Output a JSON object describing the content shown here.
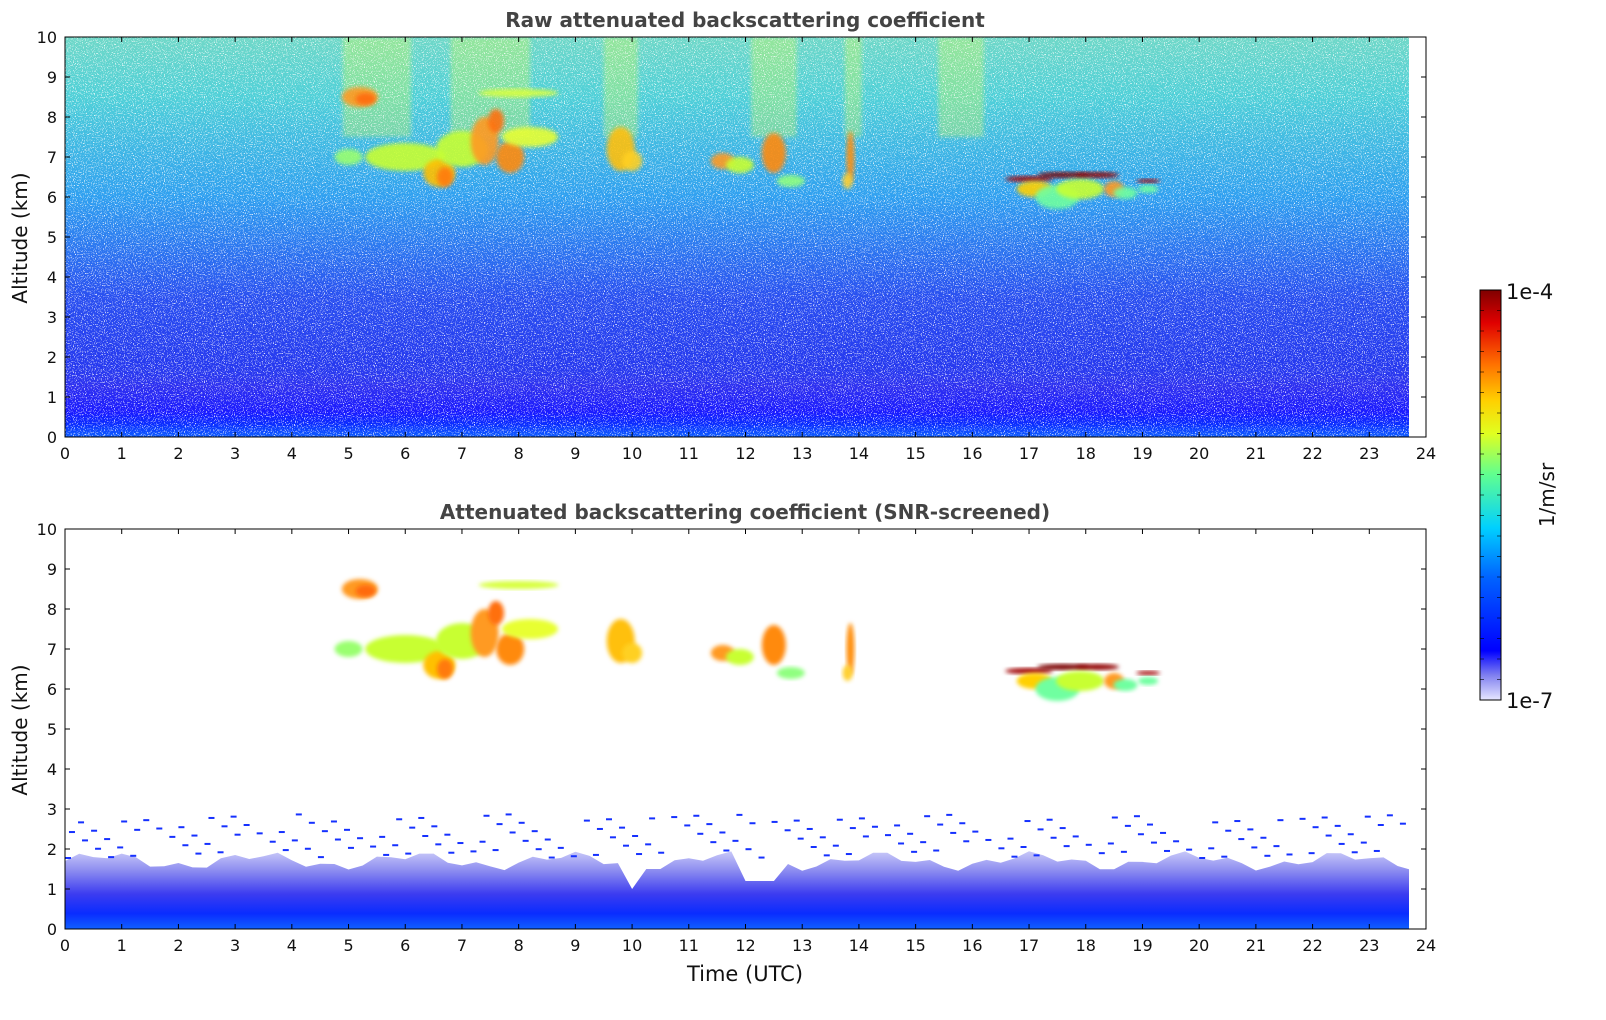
{
  "chart_data": [
    {
      "type": "heatmap",
      "title": "Raw attenuated backscattering coefficient",
      "xlabel": "",
      "ylabel": "Altitude (km)",
      "xlim": [
        0,
        24
      ],
      "ylim": [
        0,
        10
      ],
      "xticks": [
        "0",
        "1",
        "2",
        "3",
        "4",
        "5",
        "6",
        "7",
        "8",
        "9",
        "10",
        "11",
        "12",
        "13",
        "14",
        "15",
        "16",
        "17",
        "18",
        "19",
        "20",
        "21",
        "22",
        "23",
        "24"
      ],
      "yticks": [
        "0",
        "1",
        "2",
        "3",
        "4",
        "5",
        "6",
        "7",
        "8",
        "9",
        "10"
      ],
      "data_time_range": [
        0,
        23.7
      ],
      "features": [
        {
          "kind": "boundary-layer",
          "time": [
            0,
            23.7
          ],
          "altitude": [
            0,
            1.8
          ]
        },
        {
          "kind": "noisy-background",
          "time": [
            0,
            23.7
          ],
          "altitude": [
            1.8,
            10
          ]
        },
        {
          "kind": "cirrus",
          "time": [
            4.8,
            8.6
          ],
          "altitude": [
            6.3,
            8.7
          ]
        },
        {
          "kind": "cirrus",
          "time": [
            9.6,
            10.3
          ],
          "altitude": [
            6.6,
            7.9
          ]
        },
        {
          "kind": "cirrus",
          "time": [
            11.4,
            13.0
          ],
          "altitude": [
            6.3,
            7.8
          ]
        },
        {
          "kind": "cirrus",
          "time": [
            13.8,
            14.0
          ],
          "altitude": [
            6.2,
            7.7
          ]
        },
        {
          "kind": "cloud-layer",
          "time": [
            16.8,
            19.5
          ],
          "altitude": [
            5.7,
            6.7
          ]
        }
      ]
    },
    {
      "type": "heatmap",
      "title": "Attenuated backscattering coefficient (SNR-screened)",
      "xlabel": "Time (UTC)",
      "ylabel": "Altitude (km)",
      "xlim": [
        0,
        24
      ],
      "ylim": [
        0,
        10
      ],
      "xticks": [
        "0",
        "1",
        "2",
        "3",
        "4",
        "5",
        "6",
        "7",
        "8",
        "9",
        "10",
        "11",
        "12",
        "13",
        "14",
        "15",
        "16",
        "17",
        "18",
        "19",
        "20",
        "21",
        "22",
        "23",
        "24"
      ],
      "yticks": [
        "0",
        "1",
        "2",
        "3",
        "4",
        "5",
        "6",
        "7",
        "8",
        "9",
        "10"
      ],
      "data_time_range": [
        0,
        23.7
      ],
      "features": [
        {
          "kind": "boundary-layer",
          "time": [
            0,
            23.7
          ],
          "altitude": [
            0,
            1.9
          ]
        },
        {
          "kind": "cirrus",
          "time": [
            4.8,
            8.6
          ],
          "altitude": [
            6.3,
            8.7
          ]
        },
        {
          "kind": "cirrus",
          "time": [
            9.6,
            10.3
          ],
          "altitude": [
            6.6,
            7.9
          ]
        },
        {
          "kind": "cirrus",
          "time": [
            11.4,
            13.0
          ],
          "altitude": [
            6.3,
            7.8
          ]
        },
        {
          "kind": "cirrus",
          "time": [
            13.8,
            14.0
          ],
          "altitude": [
            6.2,
            7.7
          ]
        },
        {
          "kind": "cloud-layer",
          "time": [
            16.8,
            19.5
          ],
          "altitude": [
            5.7,
            6.7
          ]
        }
      ]
    }
  ],
  "colorbar": {
    "label": "1/m/sr",
    "max_label": "1e-4",
    "min_label": "1e-7",
    "range": [
      1e-07,
      0.0001
    ],
    "scale": "log",
    "colormap": [
      "#ffffff",
      "#0000ff",
      "#00c8ff",
      "#7fff7f",
      "#ffff00",
      "#ff8000",
      "#ff0000",
      "#800000"
    ]
  }
}
